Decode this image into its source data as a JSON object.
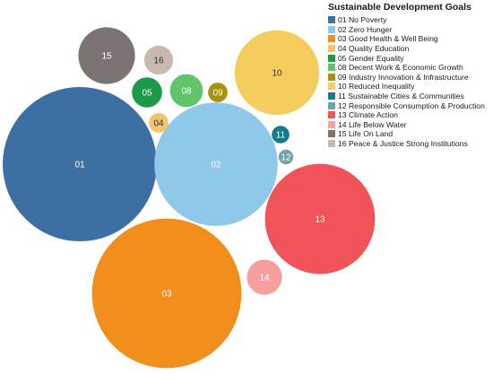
{
  "chart_data": {
    "type": "bubble",
    "title": "",
    "legend": {
      "title": "Sustainable Development Goals",
      "placement": "top-right"
    },
    "label_color": "#ffffff",
    "series": [
      {
        "name": "01 No Poverty",
        "label": "01",
        "color": "#3e6fa3",
        "value": 100
      },
      {
        "name": "02 Zero Hunger",
        "label": "02",
        "color": "#8fc8e8",
        "value": 64
      },
      {
        "name": "03 Good Health & Well Being",
        "label": "03",
        "color": "#f28e1c",
        "value": 94
      },
      {
        "name": "04 Quality Education",
        "label": "04",
        "color": "#f2c46b",
        "value": 1.6
      },
      {
        "name": "05 Gender Equality",
        "label": "05",
        "color": "#1d9a48",
        "value": 3.8
      },
      {
        "name": "08 Decent Work & Economic Growth",
        "label": "08",
        "color": "#5fc46a",
        "value": 4.6
      },
      {
        "name": "09 Industry Innovation & Infrastructure",
        "label": "09",
        "color": "#a7930f",
        "value": 1.6
      },
      {
        "name": "10 Reduced Inequality",
        "label": "10",
        "color": "#f5cd5f",
        "value": 30
      },
      {
        "name": "11 Sustainable Cities & Communities",
        "label": "11",
        "color": "#137c86",
        "value": 1.3
      },
      {
        "name": "12 Responsible Consumption & Production",
        "label": "12",
        "color": "#6da5a9",
        "value": 0.9
      },
      {
        "name": "13 Climate Action",
        "label": "13",
        "color": "#f05458",
        "value": 51
      },
      {
        "name": "14 Life Below Water",
        "label": "14",
        "color": "#f5a09c",
        "value": 5.2
      },
      {
        "name": "15 Life On Land",
        "label": "15",
        "color": "#7b7472",
        "value": 13.5
      },
      {
        "name": "16 Peace & Justice Strong Institutions",
        "label": "16",
        "color": "#c8b8b0",
        "value": 3.5
      }
    ]
  }
}
